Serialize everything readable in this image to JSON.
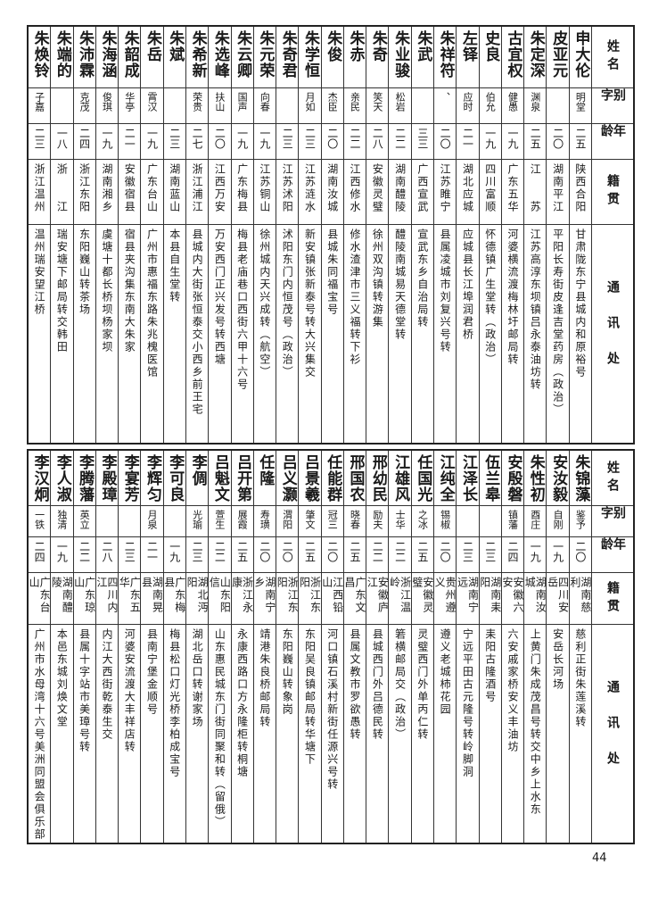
{
  "headers": {
    "name": "姓名",
    "alias": "别字",
    "age": "年龄",
    "native": "籍贯",
    "address": "通讯处"
  },
  "top_table": [
    {
      "name": "申大伦",
      "alias": "明堂",
      "age": "二五",
      "native": "陕西合阳",
      "address": "甘肃陇东宁县城内和原裕号"
    },
    {
      "name": "皮亚元",
      "alias": "",
      "age": "二〇",
      "native": "湖南平江",
      "address": "平阳长寿街皮逢吉堂药房（政治）"
    },
    {
      "name": "朱定深",
      "alias": "渊泉",
      "age": "二五",
      "native": "江　　苏",
      "address": "江苏高淳东坝镇吕永泰油坊转"
    },
    {
      "name": "古宜权",
      "alias": "健愚",
      "age": "一九",
      "native": "广东五华",
      "address": "河婆横流渡梅林圩邮局转"
    },
    {
      "name": "史良",
      "alias": "伯允",
      "age": "一九",
      "native": "四川富顺",
      "address": "怀德镇广生堂转（政治）"
    },
    {
      "name": "左铎",
      "alias": "应时",
      "age": "二一",
      "native": "湖北应城",
      "address": "应城县长江埠润君桥"
    },
    {
      "name": "朱祥符",
      "alias": "、",
      "age": "二〇",
      "native": "江苏睢宁",
      "address": "县属凌城市刘复兴号转"
    },
    {
      "name": "朱武",
      "alias": "",
      "age": "三三",
      "native": "广西宣武",
      "address": "宣武东乡自治局转"
    },
    {
      "name": "朱业骏",
      "alias": "松岩",
      "age": "二二",
      "native": "湖南醴陵",
      "address": "醴陵南城易天德堂转"
    },
    {
      "name": "朱奇",
      "alias": "笑天",
      "age": "二八",
      "native": "安徽灵璧",
      "address": "徐州双沟镇转游集"
    },
    {
      "name": "朱赤",
      "alias": "亲民",
      "age": "二二",
      "native": "江西修水",
      "address": "修水渣津市三义福转下衫"
    },
    {
      "name": "朱俊",
      "alias": "杰臣",
      "age": "二〇",
      "native": "湖南汝城",
      "address": "县城朱同福宝号"
    },
    {
      "name": "朱学恒",
      "alias": "月如",
      "age": "二三",
      "native": "江苏涟水",
      "address": "新安镇张新泰号转大兴集交"
    },
    {
      "name": "朱奇君",
      "alias": "",
      "age": "二三",
      "native": "江苏沭阳",
      "address": "沭阳东门内恒茂号（政治）"
    },
    {
      "name": "朱元荣",
      "alias": "向春",
      "age": "一九",
      "native": "江苏铜山",
      "address": "徐州城内天兴成转（航空）"
    },
    {
      "name": "朱云卿",
      "alias": "国声",
      "age": "一九",
      "native": "广东梅县",
      "address": "梅县老庙巷口西街六甲十六号"
    },
    {
      "name": "朱选峰",
      "alias": "扶山",
      "age": "二〇",
      "native": "江西万安",
      "address": "万安西门正兴发号转西塘"
    },
    {
      "name": "朱希新",
      "alias": "荣贵",
      "age": "二七",
      "native": "浙江浦江",
      "address": "县城内大街张恒泰交小西乡前王宅"
    },
    {
      "name": "朱斌",
      "alias": "",
      "age": "二三",
      "native": "湖南蓝山",
      "address": "本县自生堂转"
    },
    {
      "name": "朱岳",
      "alias": "霄汉",
      "age": "一九",
      "native": "广东台山",
      "address": "广州市惠福东路朱兆槐医馆"
    },
    {
      "name": "朱韶成",
      "alias": "华亭",
      "age": "二一",
      "native": "安徽宿县",
      "address": "宿县夹沟集东南大朱家"
    },
    {
      "name": "朱海涵",
      "alias": "俊琪",
      "age": "一九",
      "native": "湖南湘乡",
      "address": "虞塘十都长桥坝杨家坝"
    },
    {
      "name": "朱沛霖",
      "alias": "克茂",
      "age": "二四",
      "native": "浙江东阳",
      "address": "东阳巍山转茶场"
    },
    {
      "name": "朱端的",
      "alias": "",
      "age": "一八",
      "native": "浙　　江",
      "address": "瑞安塘下邮局转交韩田"
    },
    {
      "name": "朱焕铃",
      "alias": "子嘉",
      "age": "二三",
      "native": "浙江温州",
      "address": "温州瑞安望江桥"
    }
  ],
  "bottom_table": [
    {
      "name": "朱锦藻",
      "alias": "鉴予",
      "age": "二〇",
      "native": "湖南慈利",
      "address": "慈利正街朱莲溪转"
    },
    {
      "name": "安汝毅",
      "alias": "自刚",
      "age": "一九",
      "native": "四川安岳",
      "address": "安岳长河场"
    },
    {
      "name": "朱性初",
      "alias": "酉庄",
      "age": "一九",
      "native": "湖南汝城",
      "address": "上黄门朱成茂昌号转交中乡上水东"
    },
    {
      "name": "安殷磐",
      "alias": "镇藩",
      "age": "二四",
      "native": "安徽六安",
      "address": "六安戚家桥安义丰油坊"
    },
    {
      "name": "伍兰皋",
      "alias": "",
      "age": "二三",
      "native": "湖南耒阳",
      "address": "耒阳古隆酒号"
    },
    {
      "name": "江泽长",
      "alias": "",
      "age": "二三",
      "native": "湖南宁远",
      "address": "宁远平田古元隆号转岭脚洞"
    },
    {
      "name": "江纯全",
      "alias": "锡椒",
      "age": "二〇",
      "native": "贵州遵义",
      "address": "遵义老城柿花园"
    },
    {
      "name": "任国光",
      "alias": "之冰",
      "age": "二五",
      "native": "安徽灵璧",
      "address": "灵璧西门外单丙仁转"
    },
    {
      "name": "江雄风",
      "alias": "士华",
      "age": "二二",
      "native": "浙江温岭",
      "address": "箬横邮局交（政治）"
    },
    {
      "name": "邢幼民",
      "alias": "励夫",
      "age": "二二",
      "native": "安徽庐江",
      "address": "县城西门外吕德民转"
    },
    {
      "name": "邢国农",
      "alias": "晓春",
      "age": "二五",
      "native": "广东文昌",
      "address": "县属文教市罗欲愚转"
    },
    {
      "name": "任能群",
      "alias": "冠三",
      "age": "二〇",
      "native": "江西铅山",
      "address": "河口镇石溪村新街任源兴号转"
    },
    {
      "name": "吕景羲",
      "alias": "肇文",
      "age": "二五",
      "native": "浙江东阳",
      "address": "东阳吴良镇邮局转华塘下"
    },
    {
      "name": "吕义灏",
      "alias": "渭阳",
      "age": "二〇",
      "native": "浙江东阳",
      "address": "东阳巍山转象岗"
    },
    {
      "name": "任隆",
      "alias": "寿璜",
      "age": "二〇",
      "native": "湖南宁乡",
      "address": "靖港朱良桥邮局转"
    },
    {
      "name": "吕开第",
      "alias": "展霞",
      "age": "二五",
      "native": "浙江永康",
      "address": "永康西路口方永隆柜转桐塘"
    },
    {
      "name": "吕魁文",
      "alias": "萱生",
      "age": "二二",
      "native": "山东阳信",
      "address": "山东惠民城东门街同聚和转（留俄）"
    },
    {
      "name": "李倜",
      "alias": "光瑜",
      "age": "二三",
      "native": "湖北沔阳",
      "address": "湖北岳口转谢家场"
    },
    {
      "name": "李可良",
      "alias": "",
      "age": "一九",
      "native": "广东梅县",
      "address": "梅县松口灯光桥李柏成宝号"
    },
    {
      "name": "李辉匀",
      "alias": "月泉",
      "age": "二一",
      "native": "湖南晃县",
      "address": "县南宁堡金顺号"
    },
    {
      "name": "李宴芳",
      "alias": "",
      "age": "二三",
      "native": "广东五华",
      "address": "河婆安流渡大丰祥店转"
    },
    {
      "name": "李殿璋",
      "alias": "",
      "age": "二八",
      "native": "四川内江",
      "address": "内江大西街乾泰生交"
    },
    {
      "name": "李腾藩",
      "alias": "英立",
      "age": "二二",
      "native": "广东琼山",
      "address": "县属十字站市美璋号转"
    },
    {
      "name": "李人淑",
      "alias": "独清",
      "age": "一九",
      "native": "湖南醴陵",
      "address": "本邑东城刘焕文堂"
    },
    {
      "name": "李汉炯",
      "alias": "一铁",
      "age": "二四",
      "native": "广东台山",
      "address": "广州市水母湾十六号美洲同盟会俱乐部"
    }
  ],
  "page_number": "44"
}
